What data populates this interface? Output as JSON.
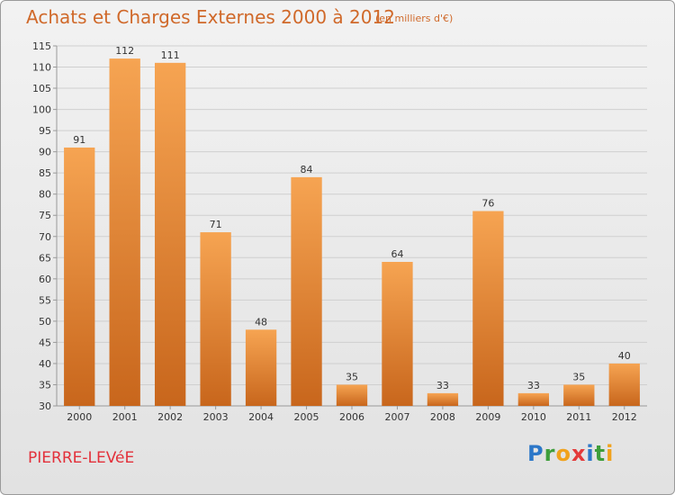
{
  "header": {
    "title": "Achats et Charges Externes 2000 à 2012",
    "unit": "(en milliers d'€)"
  },
  "footer": {
    "place": "PIERRE-LEVéE",
    "logo_letters": [
      "P",
      "r",
      "o",
      "x",
      "i",
      "t",
      "i"
    ]
  },
  "chart_data": {
    "type": "bar",
    "categories": [
      "2000",
      "2001",
      "2002",
      "2003",
      "2004",
      "2005",
      "2006",
      "2007",
      "2008",
      "2009",
      "2010",
      "2011",
      "2012"
    ],
    "values": [
      91,
      112,
      111,
      71,
      48,
      84,
      35,
      64,
      33,
      76,
      33,
      35,
      40
    ],
    "ylim": [
      30,
      115
    ],
    "yticks": [
      30,
      35,
      40,
      45,
      50,
      55,
      60,
      65,
      70,
      75,
      80,
      85,
      90,
      95,
      100,
      105,
      110,
      115
    ],
    "grid": true,
    "colors": {
      "bar_light": "#f6a452",
      "bar_dark": "#c8661c",
      "accent": "#d0692a"
    }
  }
}
